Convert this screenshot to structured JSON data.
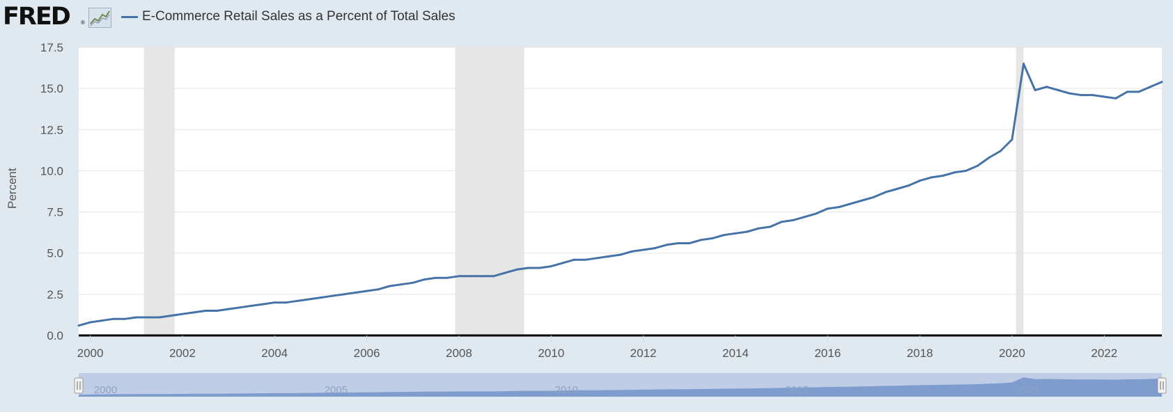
{
  "header": {
    "logo_text": "FRED",
    "logo_reg": "®",
    "logo_icon": "line-chart-icon",
    "series_label": "E-Commerce Retail Sales as a Percent of Total Sales"
  },
  "colors": {
    "background": "#e1e9f0",
    "plot_background": "#ffffff",
    "series": "#4572a7",
    "recession": "#e6e6e6",
    "navigator_fill": "#b8c8e4",
    "navigator_series": "#6a8bc5"
  },
  "chart_data": {
    "type": "line",
    "title": "",
    "xlabel": "",
    "ylabel": "Percent",
    "ylim": [
      0,
      17.5
    ],
    "yticks": [
      "0.0",
      "2.5",
      "5.0",
      "7.5",
      "10.0",
      "12.5",
      "15.0",
      "17.5"
    ],
    "xlim": [
      1999.75,
      2023.25
    ],
    "xticks": [
      "2000",
      "2002",
      "2004",
      "2006",
      "2008",
      "2010",
      "2012",
      "2014",
      "2016",
      "2018",
      "2020",
      "2022"
    ],
    "grid": true,
    "legend": "top-left",
    "recessions": [
      {
        "start": "2001-03-01",
        "end": "2001-11-01"
      },
      {
        "start": "2007-12-01",
        "end": "2009-06-01"
      },
      {
        "start": "2020-02-01",
        "end": "2020-04-01"
      }
    ],
    "navigator_ticks": [
      "2000",
      "2005",
      "2010",
      "2015",
      "2020"
    ],
    "series": [
      {
        "name": "E-Commerce Retail Sales as a Percent of Total Sales",
        "frequency": "quarterly",
        "x": [
          "1999-Q4",
          "2000-Q1",
          "2000-Q2",
          "2000-Q3",
          "2000-Q4",
          "2001-Q1",
          "2001-Q2",
          "2001-Q3",
          "2001-Q4",
          "2002-Q1",
          "2002-Q2",
          "2002-Q3",
          "2002-Q4",
          "2003-Q1",
          "2003-Q2",
          "2003-Q3",
          "2003-Q4",
          "2004-Q1",
          "2004-Q2",
          "2004-Q3",
          "2004-Q4",
          "2005-Q1",
          "2005-Q2",
          "2005-Q3",
          "2005-Q4",
          "2006-Q1",
          "2006-Q2",
          "2006-Q3",
          "2006-Q4",
          "2007-Q1",
          "2007-Q2",
          "2007-Q3",
          "2007-Q4",
          "2008-Q1",
          "2008-Q2",
          "2008-Q3",
          "2008-Q4",
          "2009-Q1",
          "2009-Q2",
          "2009-Q3",
          "2009-Q4",
          "2010-Q1",
          "2010-Q2",
          "2010-Q3",
          "2010-Q4",
          "2011-Q1",
          "2011-Q2",
          "2011-Q3",
          "2011-Q4",
          "2012-Q1",
          "2012-Q2",
          "2012-Q3",
          "2012-Q4",
          "2013-Q1",
          "2013-Q2",
          "2013-Q3",
          "2013-Q4",
          "2014-Q1",
          "2014-Q2",
          "2014-Q3",
          "2014-Q4",
          "2015-Q1",
          "2015-Q2",
          "2015-Q3",
          "2015-Q4",
          "2016-Q1",
          "2016-Q2",
          "2016-Q3",
          "2016-Q4",
          "2017-Q1",
          "2017-Q2",
          "2017-Q3",
          "2017-Q4",
          "2018-Q1",
          "2018-Q2",
          "2018-Q3",
          "2018-Q4",
          "2019-Q1",
          "2019-Q2",
          "2019-Q3",
          "2019-Q4",
          "2020-Q1",
          "2020-Q2",
          "2020-Q3",
          "2020-Q4",
          "2021-Q1",
          "2021-Q2",
          "2021-Q3",
          "2021-Q4",
          "2022-Q1",
          "2022-Q2",
          "2022-Q3",
          "2022-Q4",
          "2023-Q1",
          "2023-Q2"
        ],
        "values": [
          0.6,
          0.8,
          0.9,
          1.0,
          1.0,
          1.1,
          1.1,
          1.1,
          1.2,
          1.3,
          1.4,
          1.5,
          1.5,
          1.6,
          1.7,
          1.8,
          1.9,
          2.0,
          2.0,
          2.1,
          2.2,
          2.3,
          2.4,
          2.5,
          2.6,
          2.7,
          2.8,
          3.0,
          3.1,
          3.2,
          3.4,
          3.5,
          3.5,
          3.6,
          3.6,
          3.6,
          3.6,
          3.8,
          4.0,
          4.1,
          4.1,
          4.2,
          4.4,
          4.6,
          4.6,
          4.7,
          4.8,
          4.9,
          5.1,
          5.2,
          5.3,
          5.5,
          5.6,
          5.6,
          5.8,
          5.9,
          6.1,
          6.2,
          6.3,
          6.5,
          6.6,
          6.9,
          7.0,
          7.2,
          7.4,
          7.7,
          7.8,
          8.0,
          8.2,
          8.4,
          8.7,
          8.9,
          9.1,
          9.4,
          9.6,
          9.7,
          9.9,
          10.0,
          10.3,
          10.8,
          11.2,
          11.9,
          16.5,
          14.9,
          15.1,
          14.9,
          14.7,
          14.6,
          14.6,
          14.5,
          14.4,
          14.8,
          14.8,
          15.1,
          15.4
        ]
      }
    ]
  }
}
